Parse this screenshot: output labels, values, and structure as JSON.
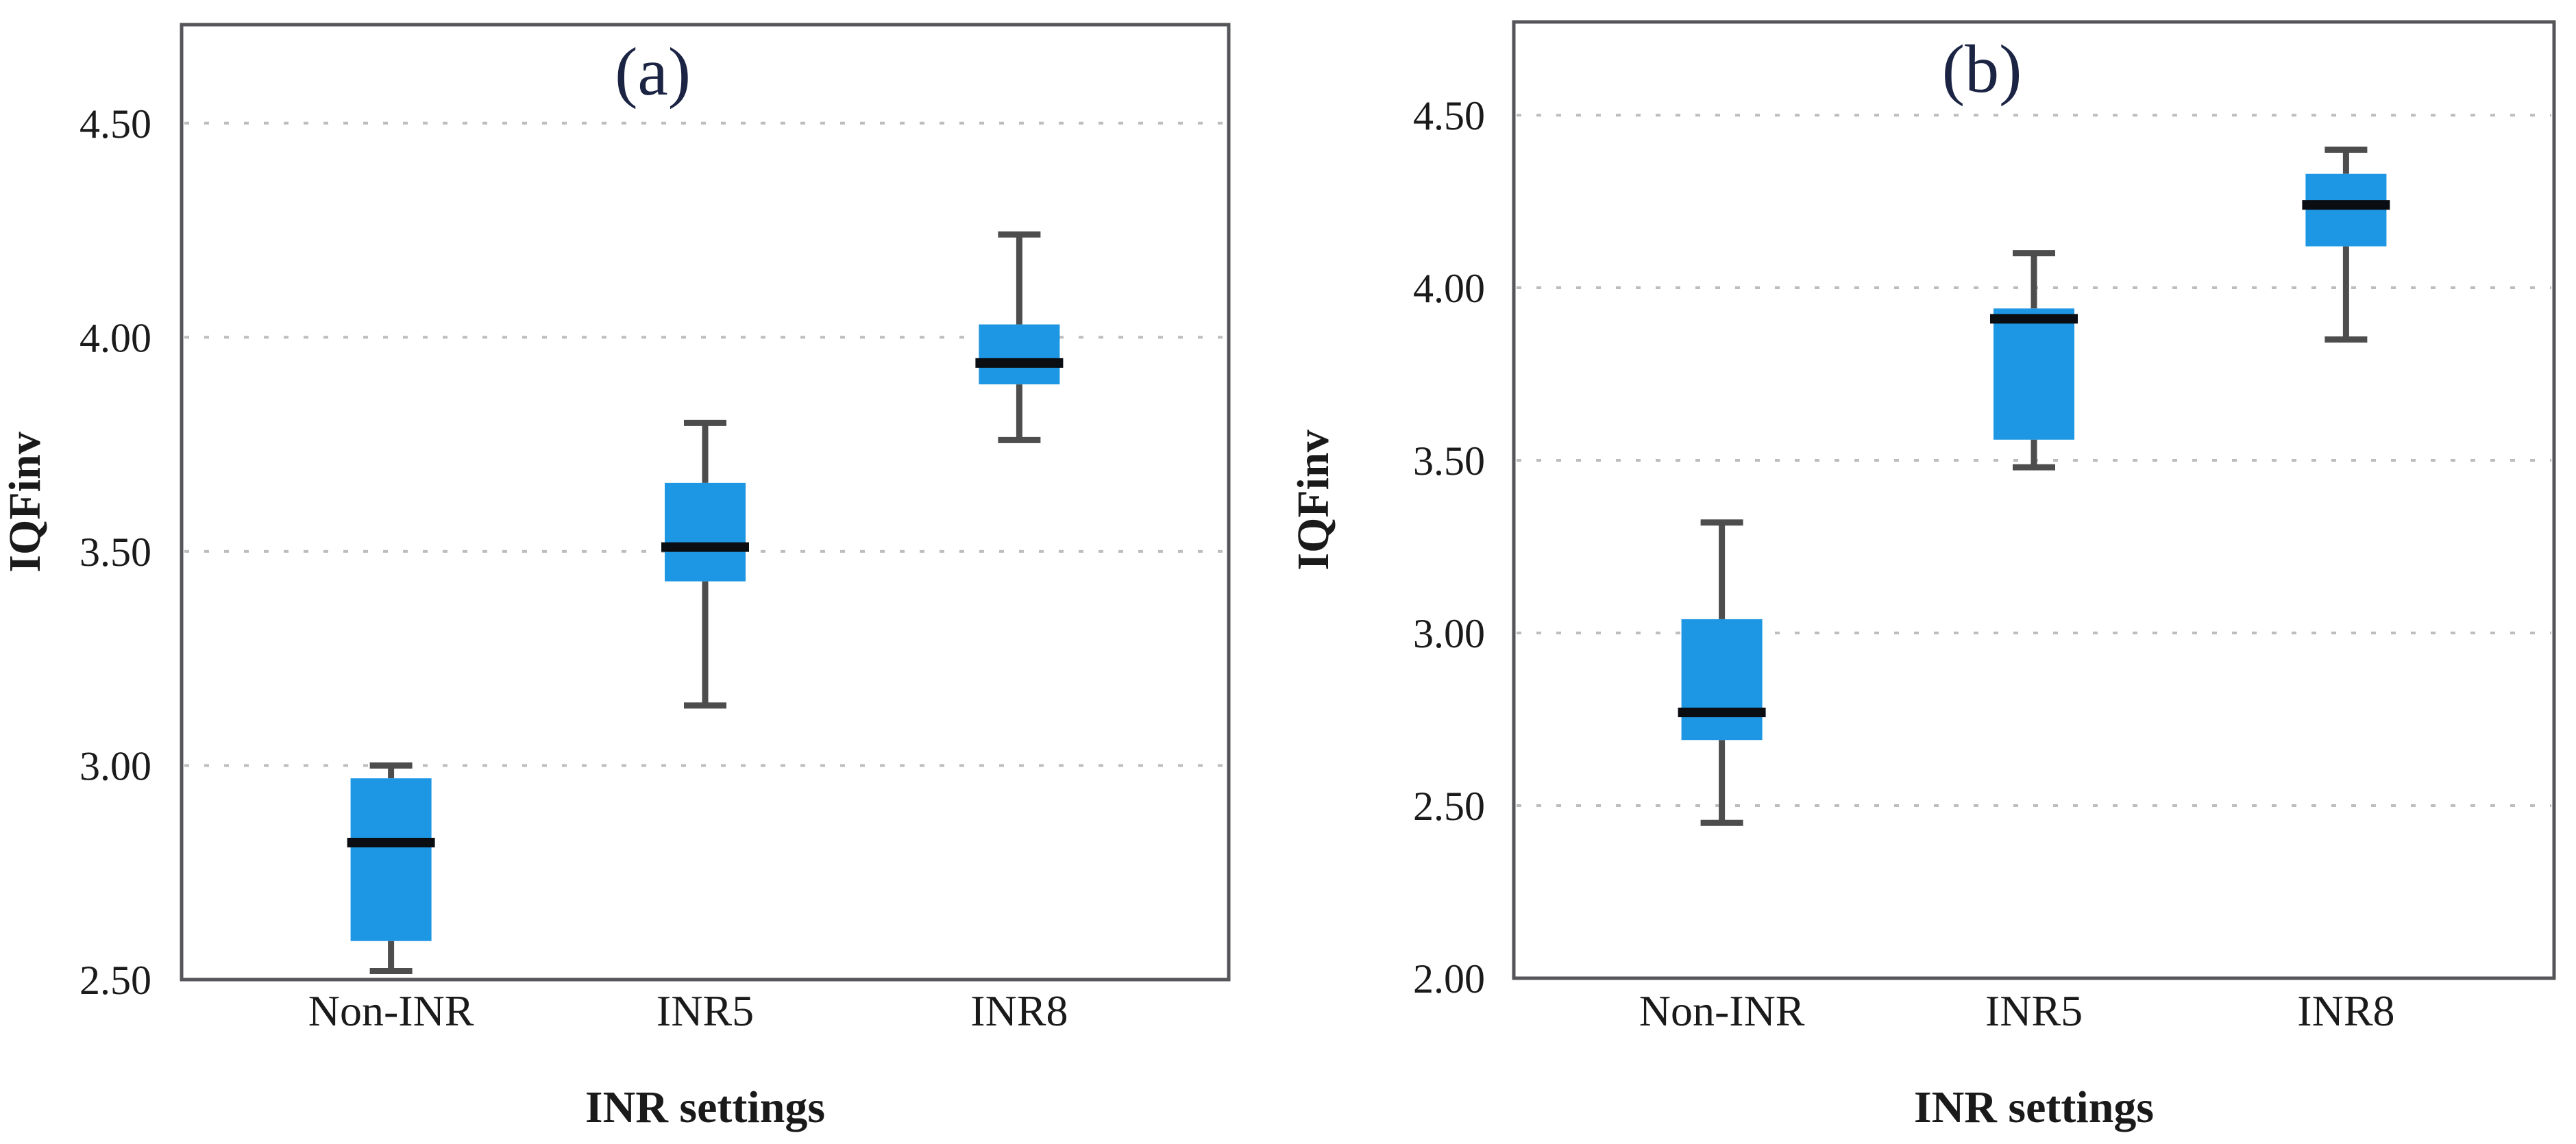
{
  "figure": {
    "background": "#ffffff",
    "description_labels": {
      "panel_a": "(a)",
      "panel_b": "(b)"
    }
  },
  "colors": {
    "box_fill": "#1d96e3",
    "median_line": "#0a0d12",
    "whisker": "#4d4d4d",
    "frame": "#55565a",
    "gridline": "#bdbdbd",
    "tick_text": "#1a1a1a",
    "title_text": "#1c2444"
  },
  "chart_data": [
    {
      "type": "boxplot",
      "title": "(a)",
      "xlabel": "INR settings",
      "ylabel": "IQFinv",
      "categories": [
        "Non-INR",
        "INR5",
        "INR8"
      ],
      "ytick_labels": [
        "4.50",
        "4.00",
        "3.50",
        "3.00",
        "2.50"
      ],
      "ytick_values": [
        4.5,
        4.0,
        3.5,
        3.0,
        2.5
      ],
      "ylim": [
        2.5,
        4.73
      ],
      "grid": "dotted-horizontal",
      "legend": "none",
      "series": [
        {
          "category": "Non-INR",
          "whisker_low": 2.52,
          "q1": 2.59,
          "median": 2.82,
          "q3": 2.97,
          "whisker_high": 3.0
        },
        {
          "category": "INR5",
          "whisker_low": 3.14,
          "q1": 3.43,
          "median": 3.51,
          "q3": 3.66,
          "whisker_high": 3.8
        },
        {
          "category": "INR8",
          "whisker_low": 3.76,
          "q1": 3.89,
          "median": 3.94,
          "q3": 4.03,
          "whisker_high": 4.24
        }
      ]
    },
    {
      "type": "boxplot",
      "title": "(b)",
      "xlabel": "INR settings",
      "ylabel": "IQFinv",
      "categories": [
        "Non-INR",
        "INR5",
        "INR8"
      ],
      "ytick_labels": [
        "4.50",
        "4.00",
        "3.50",
        "3.00",
        "2.50",
        "2.00"
      ],
      "ytick_values": [
        4.5,
        4.0,
        3.5,
        3.0,
        2.5,
        2.0
      ],
      "ylim": [
        2.0,
        4.77
      ],
      "grid": "dotted-horizontal",
      "legend": "none",
      "series": [
        {
          "category": "Non-INR",
          "whisker_low": 2.45,
          "q1": 2.69,
          "median": 2.77,
          "q3": 3.04,
          "whisker_high": 3.32
        },
        {
          "category": "INR5",
          "whisker_low": 3.48,
          "q1": 3.56,
          "median": 3.91,
          "q3": 3.94,
          "whisker_high": 4.1
        },
        {
          "category": "INR8",
          "whisker_low": 3.85,
          "q1": 4.12,
          "median": 4.24,
          "q3": 4.33,
          "whisker_high": 4.4
        }
      ]
    }
  ]
}
